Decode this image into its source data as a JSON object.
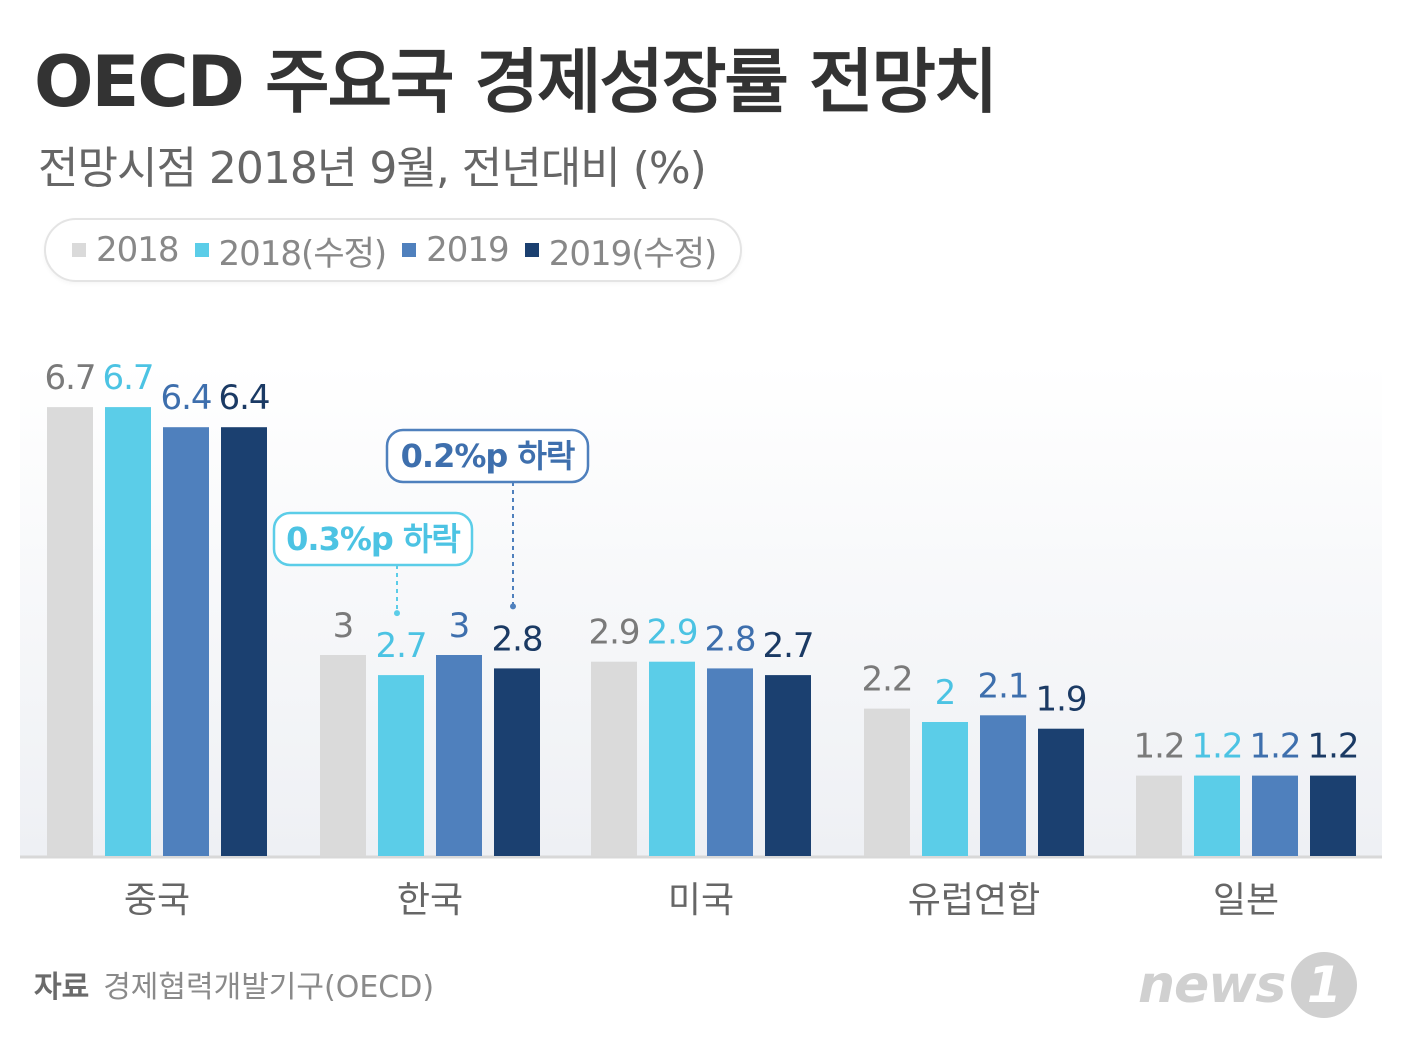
{
  "chart_data": {
    "type": "bar",
    "title": "OECD 주요국 경제성장률 전망치",
    "subtitle": "전망시점 2018년 9월, 전년대비 (%)",
    "categories": [
      "중국",
      "한국",
      "미국",
      "유럽연합",
      "일본"
    ],
    "series": [
      {
        "name": "2018",
        "color": "#dadada",
        "label_color": "#7a7a7a",
        "values": [
          6.7,
          3,
          2.9,
          2.2,
          1.2
        ],
        "labels": [
          "6.7",
          "3",
          "2.9",
          "2.2",
          "1.2"
        ]
      },
      {
        "name": "2018(수정)",
        "color": "#5bcde8",
        "label_color": "#4cc3e3",
        "values": [
          6.7,
          2.7,
          2.9,
          2,
          1.2
        ],
        "labels": [
          "6.7",
          "2.7",
          "2.9",
          "2",
          "1.2"
        ]
      },
      {
        "name": "2019",
        "color": "#4f80bd",
        "label_color": "#3e6fad",
        "values": [
          6.4,
          3,
          2.8,
          2.1,
          1.2
        ],
        "labels": [
          "6.4",
          "3",
          "2.8",
          "2.1",
          "1.2"
        ]
      },
      {
        "name": "2019(수정)",
        "color": "#1b4070",
        "label_color": "#1b3a64",
        "values": [
          6.4,
          2.8,
          2.7,
          1.9,
          1.2
        ],
        "labels": [
          "6.4",
          "2.8",
          "2.7",
          "1.9",
          "1.2"
        ]
      }
    ],
    "annotations": [
      {
        "text": "0.3%p 하락",
        "category": "한국",
        "series": "2018(수정)",
        "color": "#5bcde8",
        "text_color": "#4cc3e3"
      },
      {
        "text": "0.2%p 하락",
        "category": "한국",
        "series": "2019(수정)",
        "color": "#4f80bd",
        "text_color": "#3e6fad"
      }
    ],
    "ylim": [
      0,
      7
    ],
    "xlabel": "",
    "ylabel": "",
    "legend": "top-left"
  },
  "source": {
    "label": "자료",
    "text": "경제협력개발기구(OECD)"
  },
  "logo": {
    "text": "news",
    "badge": "1"
  }
}
